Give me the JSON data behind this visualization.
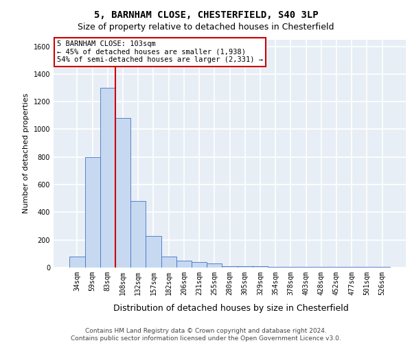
{
  "title_line1": "5, BARNHAM CLOSE, CHESTERFIELD, S40 3LP",
  "title_line2": "Size of property relative to detached houses in Chesterfield",
  "xlabel": "Distribution of detached houses by size in Chesterfield",
  "ylabel": "Number of detached properties",
  "categories": [
    "34sqm",
    "59sqm",
    "83sqm",
    "108sqm",
    "132sqm",
    "157sqm",
    "182sqm",
    "206sqm",
    "231sqm",
    "255sqm",
    "280sqm",
    "305sqm",
    "329sqm",
    "354sqm",
    "378sqm",
    "403sqm",
    "428sqm",
    "452sqm",
    "477sqm",
    "501sqm",
    "526sqm"
  ],
  "values": [
    80,
    800,
    1300,
    1080,
    480,
    230,
    80,
    50,
    40,
    30,
    10,
    10,
    10,
    5,
    5,
    5,
    5,
    5,
    5,
    5,
    5
  ],
  "bar_color": "#c6d9f0",
  "bar_edge_color": "#4472c4",
  "red_line_x": 2.5,
  "red_line_color": "#cc0000",
  "annotation_text_line1": "5 BARNHAM CLOSE: 103sqm",
  "annotation_text_line2": "← 45% of detached houses are smaller (1,938)",
  "annotation_text_line3": "54% of semi-detached houses are larger (2,331) →",
  "ylim_max": 1650,
  "yticks": [
    0,
    200,
    400,
    600,
    800,
    1000,
    1200,
    1400,
    1600
  ],
  "footer_line1": "Contains HM Land Registry data © Crown copyright and database right 2024.",
  "footer_line2": "Contains public sector information licensed under the Open Government Licence v3.0.",
  "bg_color": "#e8eef5",
  "grid_color": "#ffffff",
  "title_fontsize": 10,
  "subtitle_fontsize": 9,
  "ylabel_fontsize": 8,
  "xlabel_fontsize": 9,
  "tick_fontsize": 7,
  "footer_fontsize": 6.5,
  "ann_fontsize": 7.5
}
